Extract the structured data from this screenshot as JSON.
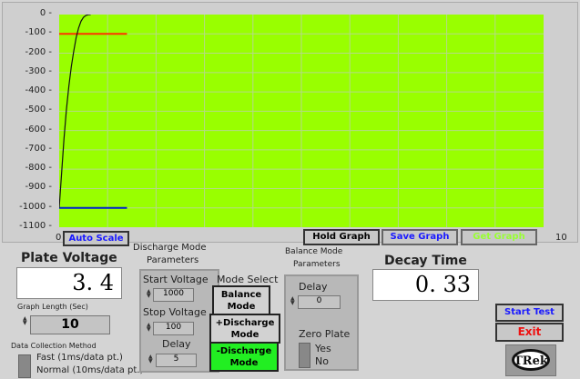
{
  "graph": {
    "buttons": {
      "auto_scale": "Auto Scale",
      "hold": "Hold Graph",
      "save": "Save Graph",
      "get": "Get Graph"
    },
    "plot_bg": "#99ff00"
  },
  "chart_data": {
    "type": "line",
    "xlim": [
      0,
      10
    ],
    "ylim": [
      -1100,
      0
    ],
    "x_ticks": [
      "0",
      "10"
    ],
    "y_ticks": [
      "0",
      "-100",
      "-200",
      "-300",
      "-400",
      "-500",
      "-600",
      "-700",
      "-800",
      "-900",
      "-1000",
      "-1100"
    ],
    "grid": true,
    "series": [
      {
        "color": "#ff3300",
        "x": [
          0,
          1.4
        ],
        "y": [
          -100,
          -100
        ]
      },
      {
        "color": "#0022cc",
        "x": [
          0,
          1.4
        ],
        "y": [
          -1000,
          -1000
        ]
      },
      {
        "color": "#111111",
        "x": [
          0,
          0.05,
          0.1,
          0.15,
          0.2,
          0.25,
          0.3,
          0.35,
          0.4,
          0.45,
          0.5,
          0.55,
          0.6,
          0.65
        ],
        "y": [
          -1000,
          -820,
          -640,
          -490,
          -370,
          -270,
          -190,
          -120,
          -70,
          -35,
          -15,
          -5,
          -1,
          0
        ]
      }
    ]
  },
  "plate_voltage": {
    "label": "Plate Voltage",
    "value": "3. 4"
  },
  "graph_length": {
    "label": "Graph Length (Sec)",
    "value": "10"
  },
  "data_collection": {
    "label": "Data Collection Method",
    "fast": "Fast (1ms/data pt.)",
    "normal": "Normal (10ms/data pt.)"
  },
  "discharge": {
    "title1": "Discharge Mode",
    "title2": "Parameters",
    "start_label": "Start Voltage",
    "start": "1000",
    "stop_label": "Stop Voltage",
    "stop": "100",
    "delay_label": "Delay",
    "delay": "5"
  },
  "mode_select": {
    "label": "Mode Select",
    "balance": [
      "Balance",
      "Mode"
    ],
    "plus": [
      "+Discharge",
      "Mode"
    ],
    "minus": [
      "-Discharge",
      "Mode"
    ]
  },
  "balance": {
    "title1": "Balance Mode",
    "title2": "Parameters",
    "delay_label": "Delay",
    "delay": "0",
    "zero_label": "Zero Plate",
    "yes": "Yes",
    "no": "No"
  },
  "decay": {
    "label": "Decay Time",
    "value": "0. 33"
  },
  "actions": {
    "start": "Start Test",
    "exit": "Exit"
  },
  "logo": "TRek"
}
